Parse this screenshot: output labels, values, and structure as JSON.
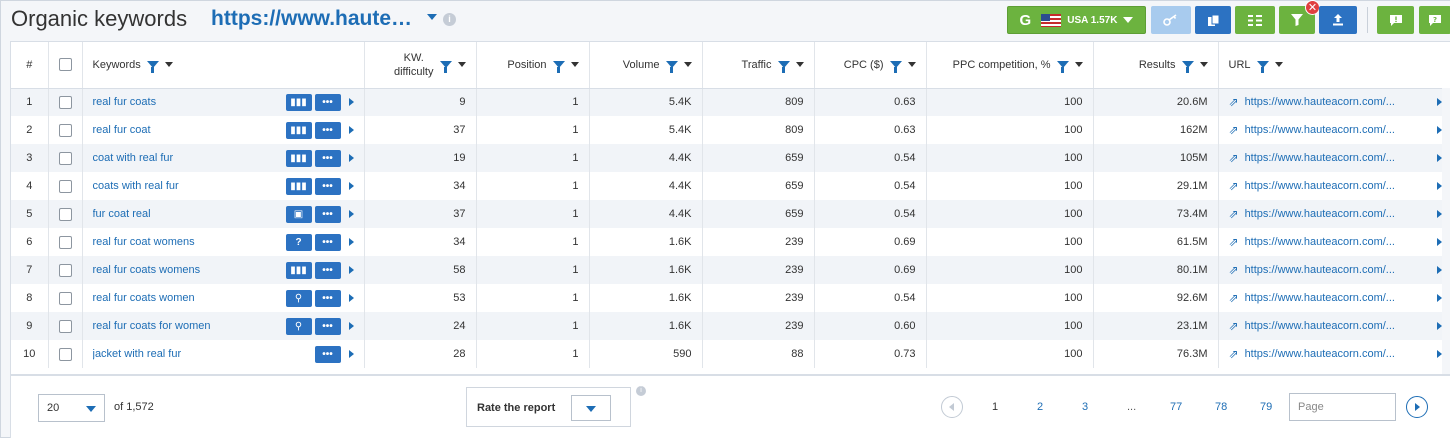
{
  "header": {
    "title": "Organic keywords",
    "domain": "https://www.haute…",
    "db_button": {
      "letter": "G",
      "label": "USA 1.57K",
      "flag_icon": "us-flag-icon"
    },
    "accent_green": "#6cb33f",
    "accent_blue": "#2c72c2"
  },
  "columns": {
    "num": "#",
    "keywords": "Keywords",
    "kw_difficulty_1": "KW.",
    "kw_difficulty_2": "difficulty",
    "position": "Position",
    "volume": "Volume",
    "traffic": "Traffic",
    "cpc": "CPC ($)",
    "ppc": "PPC competition, %",
    "results": "Results",
    "url": "URL"
  },
  "rows": [
    {
      "n": "1",
      "keyword": "real fur coats",
      "serp_icon": "bars",
      "difficulty": "9",
      "position": "1",
      "volume": "5.4K",
      "traffic": "809",
      "cpc": "0.63",
      "ppc": "100",
      "results": "20.6M",
      "url": "https://www.hauteacorn.com/..."
    },
    {
      "n": "2",
      "keyword": "real fur coat",
      "serp_icon": "bars",
      "difficulty": "37",
      "position": "1",
      "volume": "5.4K",
      "traffic": "809",
      "cpc": "0.63",
      "ppc": "100",
      "results": "162M",
      "url": "https://www.hauteacorn.com/..."
    },
    {
      "n": "3",
      "keyword": "coat with real fur",
      "serp_icon": "bars",
      "difficulty": "19",
      "position": "1",
      "volume": "4.4K",
      "traffic": "659",
      "cpc": "0.54",
      "ppc": "100",
      "results": "105M",
      "url": "https://www.hauteacorn.com/..."
    },
    {
      "n": "4",
      "keyword": "coats with real fur",
      "serp_icon": "bars",
      "difficulty": "34",
      "position": "1",
      "volume": "4.4K",
      "traffic": "659",
      "cpc": "0.54",
      "ppc": "100",
      "results": "29.1M",
      "url": "https://www.hauteacorn.com/..."
    },
    {
      "n": "5",
      "keyword": "fur coat real",
      "serp_icon": "images",
      "difficulty": "37",
      "position": "1",
      "volume": "4.4K",
      "traffic": "659",
      "cpc": "0.54",
      "ppc": "100",
      "results": "73.4M",
      "url": "https://www.hauteacorn.com/..."
    },
    {
      "n": "6",
      "keyword": "real fur coat womens",
      "serp_icon": "question",
      "difficulty": "34",
      "position": "1",
      "volume": "1.6K",
      "traffic": "239",
      "cpc": "0.69",
      "ppc": "100",
      "results": "61.5M",
      "url": "https://www.hauteacorn.com/..."
    },
    {
      "n": "7",
      "keyword": "real fur coats womens",
      "serp_icon": "bars",
      "difficulty": "58",
      "position": "1",
      "volume": "1.6K",
      "traffic": "239",
      "cpc": "0.69",
      "ppc": "100",
      "results": "80.1M",
      "url": "https://www.hauteacorn.com/..."
    },
    {
      "n": "8",
      "keyword": "real fur coats women",
      "serp_icon": "shopping",
      "difficulty": "53",
      "position": "1",
      "volume": "1.6K",
      "traffic": "239",
      "cpc": "0.54",
      "ppc": "100",
      "results": "92.6M",
      "url": "https://www.hauteacorn.com/..."
    },
    {
      "n": "9",
      "keyword": "real fur coats for women",
      "serp_icon": "shopping",
      "difficulty": "24",
      "position": "1",
      "volume": "1.6K",
      "traffic": "239",
      "cpc": "0.60",
      "ppc": "100",
      "results": "23.1M",
      "url": "https://www.hauteacorn.com/..."
    },
    {
      "n": "10",
      "keyword": "jacket with real fur",
      "serp_icon": "",
      "difficulty": "28",
      "position": "1",
      "volume": "590",
      "traffic": "88",
      "cpc": "0.73",
      "ppc": "100",
      "results": "76.3M",
      "url": "https://www.hauteacorn.com/..."
    }
  ],
  "footer": {
    "per_page": "20",
    "of_total": "of 1,572",
    "rate_label": "Rate the report",
    "pages": [
      "1",
      "2",
      "3",
      "...",
      "77",
      "78",
      "79"
    ],
    "current_page": "1",
    "page_placeholder": "Page"
  }
}
